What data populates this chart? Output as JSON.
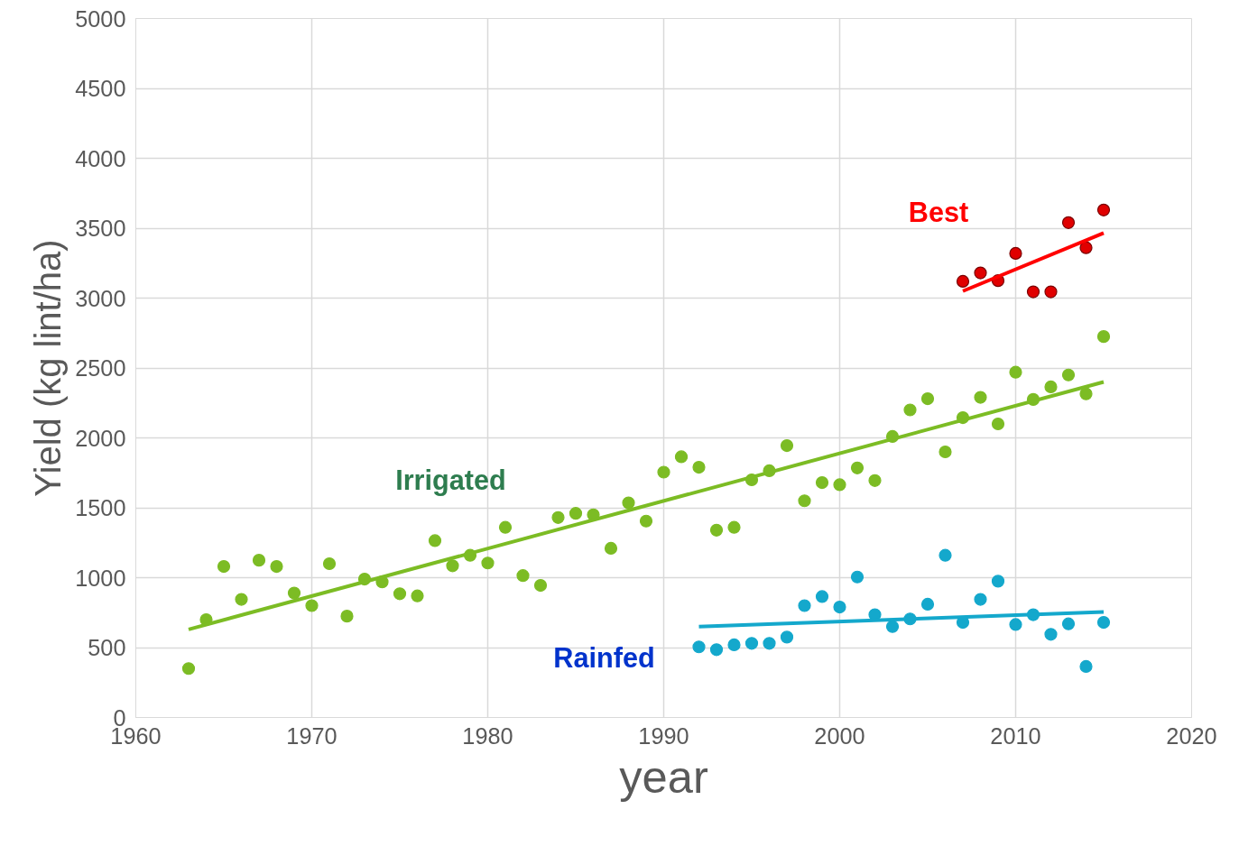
{
  "chart_data": {
    "type": "scatter",
    "xlabel": "year",
    "ylabel": "Yield (kg lint/ha)",
    "xlim": [
      1960,
      2020
    ],
    "xticks": [
      1960,
      1970,
      1980,
      1990,
      2000,
      2010,
      2020
    ],
    "ylim": [
      0,
      5000
    ],
    "yticks": [
      0,
      500,
      1000,
      1500,
      2000,
      2500,
      3000,
      3500,
      4000,
      4500,
      5000
    ],
    "grid": true,
    "series": [
      {
        "name": "Irrigated",
        "color": "#7cbc24",
        "x": [
          1963,
          1964,
          1965,
          1966,
          1967,
          1968,
          1969,
          1970,
          1971,
          1972,
          1973,
          1974,
          1975,
          1976,
          1977,
          1978,
          1979,
          1980,
          1981,
          1982,
          1983,
          1984,
          1985,
          1986,
          1987,
          1988,
          1989,
          1990,
          1991,
          1992,
          1993,
          1994,
          1995,
          1996,
          1997,
          1998,
          1999,
          2000,
          2001,
          2002,
          2003,
          2004,
          2005,
          2006,
          2007,
          2008,
          2009,
          2010,
          2011,
          2012,
          2013,
          2014,
          2015
        ],
        "values": [
          350,
          700,
          1080,
          845,
          1125,
          1080,
          890,
          800,
          1100,
          725,
          990,
          970,
          885,
          870,
          1265,
          1085,
          1160,
          1105,
          1360,
          1015,
          945,
          1430,
          1460,
          1450,
          1210,
          1535,
          1405,
          1755,
          1865,
          1790,
          1340,
          1360,
          1700,
          1765,
          1945,
          1550,
          1680,
          1665,
          1785,
          1695,
          2010,
          2200,
          2280,
          1900,
          2145,
          2290,
          2100,
          2470,
          2275,
          2365,
          2450,
          2315,
          2725
        ]
      },
      {
        "name": "Rainfed",
        "color": "#14a8cc",
        "x": [
          1992,
          1993,
          1994,
          1995,
          1996,
          1997,
          1998,
          1999,
          2000,
          2001,
          2002,
          2003,
          2004,
          2005,
          2006,
          2007,
          2008,
          2009,
          2010,
          2011,
          2012,
          2013,
          2014,
          2015
        ],
        "values": [
          505,
          485,
          520,
          530,
          530,
          575,
          800,
          865,
          790,
          1005,
          735,
          650,
          705,
          810,
          1160,
          680,
          845,
          975,
          665,
          735,
          595,
          670,
          365,
          680
        ]
      },
      {
        "name": "Best",
        "color": "#e00000",
        "x": [
          2007,
          2008,
          2009,
          2010,
          2011,
          2012,
          2013,
          2014,
          2015
        ],
        "values": [
          3120,
          3180,
          3125,
          3320,
          3045,
          3045,
          3540,
          3360,
          3630
        ]
      },
      {
        "type": "line",
        "color": "#7cbc24",
        "x": [
          1963,
          2015
        ],
        "values": [
          630,
          2400
        ]
      },
      {
        "type": "line",
        "color": "#14a8cc",
        "x": [
          1992,
          2015
        ],
        "values": [
          650,
          755
        ]
      },
      {
        "type": "line",
        "color": "#ff0000",
        "x": [
          2007,
          2015
        ],
        "values": [
          3050,
          3465
        ]
      }
    ]
  }
}
